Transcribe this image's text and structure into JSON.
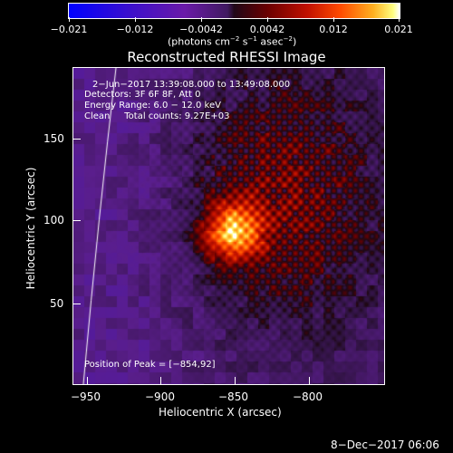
{
  "colorbar": {
    "ticks": [
      "−0.021",
      "−0.012",
      "−0.0042",
      "0.0042",
      "0.012",
      "0.021"
    ],
    "units_prefix": "(photons cm",
    "units_exp1": "−2",
    "units_mid": " s",
    "units_exp2": "−1",
    "units_mid2": " asec",
    "units_exp3": "−2",
    "units_suffix": ")"
  },
  "title": "Reconstructed RHESSI Image",
  "info": {
    "time_range": "2−Jun−2017 13:39:08.000 to 13:49:08.000",
    "detectors": "Detectors: 3F 6F 8F, Att 0",
    "energy": "Energy Range: 6.0 − 12.0 keV",
    "clean": "Clean     Total counts: 9.27E+03"
  },
  "peak_label": "Position of Peak = [−854,92]",
  "axes": {
    "x_label": "Heliocentric X (arcsec)",
    "y_label": "Heliocentric Y (arcsec)",
    "x_ticks": [
      "−950",
      "−900",
      "−850",
      "−800"
    ],
    "y_ticks": [
      "150",
      "100",
      "50"
    ]
  },
  "footer_date": "8−Dec−2017 06:06",
  "colors": {
    "background": "#000000",
    "text": "#ffffff"
  }
}
